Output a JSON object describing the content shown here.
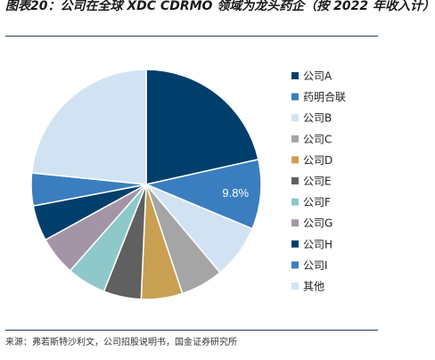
{
  "figure": {
    "title": "图表20：公司在全球 XDC CDRMO 领域为龙头药企（按 2022 年收入计）",
    "source": "来源：弗若斯特沙利文，公司招股说明书，国金证券研究所"
  },
  "chart_data": {
    "type": "pie",
    "start_angle_deg": 0,
    "direction": "clockwise",
    "legend_position": "right",
    "slices": [
      {
        "label": "公司A",
        "value": 21.5,
        "color": "#003f6b"
      },
      {
        "label": "药明合联",
        "value": 9.8,
        "color": "#3b7ebf",
        "data_label": "9.8%"
      },
      {
        "label": "公司B",
        "value": 7.6,
        "color": "#d1e3f3"
      },
      {
        "label": "公司C",
        "value": 6.0,
        "color": "#a5a5a5"
      },
      {
        "label": "公司D",
        "value": 5.8,
        "color": "#c9a052"
      },
      {
        "label": "公司E",
        "value": 5.3,
        "color": "#606060"
      },
      {
        "label": "公司F",
        "value": 5.5,
        "color": "#8ec8cb"
      },
      {
        "label": "公司G",
        "value": 5.5,
        "color": "#a495a6"
      },
      {
        "label": "公司H",
        "value": 5.0,
        "color": "#003f6b"
      },
      {
        "label": "公司I",
        "value": 4.6,
        "color": "#3b7ebf"
      },
      {
        "label": "其他",
        "value": 23.4,
        "color": "#d1e3f3"
      }
    ]
  }
}
